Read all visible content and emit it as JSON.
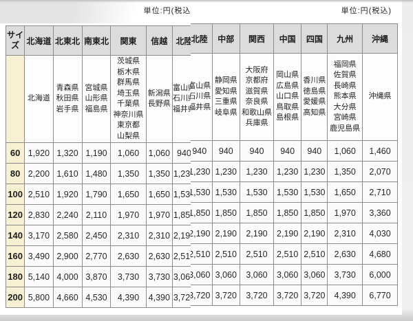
{
  "unit_label_left": "単位:円(税込)",
  "unit_label_right": "単位:円(税込)",
  "table": {
    "size_header": "サイズ",
    "sizes": [
      "60",
      "80",
      "100",
      "120",
      "140",
      "160",
      "180",
      "200"
    ],
    "regions": [
      {
        "id": "hokkaido",
        "label": "北海道",
        "prefs": [
          "北海道"
        ],
        "values": [
          "1,920",
          "2,200",
          "2,510",
          "2,830",
          "3,170",
          "3,490",
          "5,140",
          "5,800"
        ]
      },
      {
        "id": "kitatohoku",
        "label": "北東北",
        "prefs": [
          "青森県",
          "秋田県",
          "岩手県"
        ],
        "values": [
          "1,320",
          "1,610",
          "1,920",
          "2,240",
          "2,580",
          "2,900",
          "4,000",
          "4,660"
        ]
      },
      {
        "id": "minamitohoku",
        "label": "南東北",
        "prefs": [
          "宮城県",
          "山形県",
          "福島県"
        ],
        "values": [
          "1,190",
          "1,480",
          "1,790",
          "2,110",
          "2,450",
          "2,770",
          "3,870",
          "4,530"
        ]
      },
      {
        "id": "kanto",
        "label": "関東",
        "prefs": [
          "茨城県",
          "栃木県",
          "群馬県",
          "埼玉県",
          "千葉県",
          "神奈川県",
          "東京都",
          "山梨県"
        ],
        "values": [
          "1,060",
          "1,350",
          "1,650",
          "1,970",
          "2,310",
          "2,630",
          "3,730",
          "4,390"
        ]
      },
      {
        "id": "shinetsu",
        "label": "信越",
        "prefs": [
          "新潟県",
          "長野県"
        ],
        "values": [
          "1,060",
          "1,350",
          "1,650",
          "1,970",
          "2,310",
          "2,630",
          "3,730",
          "4,390"
        ]
      },
      {
        "id": "hokuriku",
        "label": "北陸",
        "prefs": [
          "富山県",
          "石川県",
          "福井県"
        ],
        "values": [
          "940",
          "1,230",
          "1,530",
          "1,850",
          "2,190",
          "2,510",
          "3,060",
          "3,720"
        ]
      },
      {
        "id": "chubu",
        "label": "中部",
        "prefs": [
          "静岡県",
          "愛知県",
          "三重県",
          "岐阜県"
        ],
        "values": [
          "940",
          "1,230",
          "1,530",
          "1,850",
          "2,190",
          "2,510",
          "3,060",
          "3,720"
        ]
      },
      {
        "id": "kansai",
        "label": "関西",
        "prefs": [
          "大阪府",
          "京都府",
          "滋賀県",
          "奈良県",
          "和歌山県",
          "兵庫県"
        ],
        "values": [
          "940",
          "1,230",
          "1,530",
          "1,850",
          "2,190",
          "2,510",
          "3,060",
          "3,720"
        ]
      },
      {
        "id": "chugoku",
        "label": "中国",
        "prefs": [
          "岡山県",
          "広島県",
          "山口県",
          "鳥取県",
          "島根県"
        ],
        "values": [
          "940",
          "1,230",
          "1,530",
          "1,850",
          "2,190",
          "2,510",
          "3,060",
          "3,720"
        ]
      },
      {
        "id": "shikoku",
        "label": "四国",
        "prefs": [
          "香川県",
          "徳島県",
          "愛媛県",
          "高知県"
        ],
        "values": [
          "940",
          "1,230",
          "1,530",
          "1,850",
          "2,190",
          "2,510",
          "3,060",
          "3,720"
        ]
      },
      {
        "id": "kyushu",
        "label": "九州",
        "prefs": [
          "福岡県",
          "佐賀県",
          "長崎県",
          "熊本県",
          "大分県",
          "宮崎県",
          "鹿児島県"
        ],
        "values": [
          "1,060",
          "1,350",
          "1,650",
          "1,970",
          "2,310",
          "2,630",
          "3,730",
          "4,390"
        ]
      },
      {
        "id": "okinawa",
        "label": "沖縄",
        "prefs": [
          "沖縄県"
        ],
        "values": [
          "1,460",
          "2,070",
          "2,710",
          "3,360",
          "4,030",
          "4,680",
          "6,000",
          "6,770"
        ]
      }
    ]
  },
  "colors": {
    "header_bg": "#dcdcdc",
    "size_column_bg": "#f7f0d3",
    "cell_bg": "#fbfbfb",
    "border": "#8b8b8b",
    "page_bg": "#ededed"
  }
}
